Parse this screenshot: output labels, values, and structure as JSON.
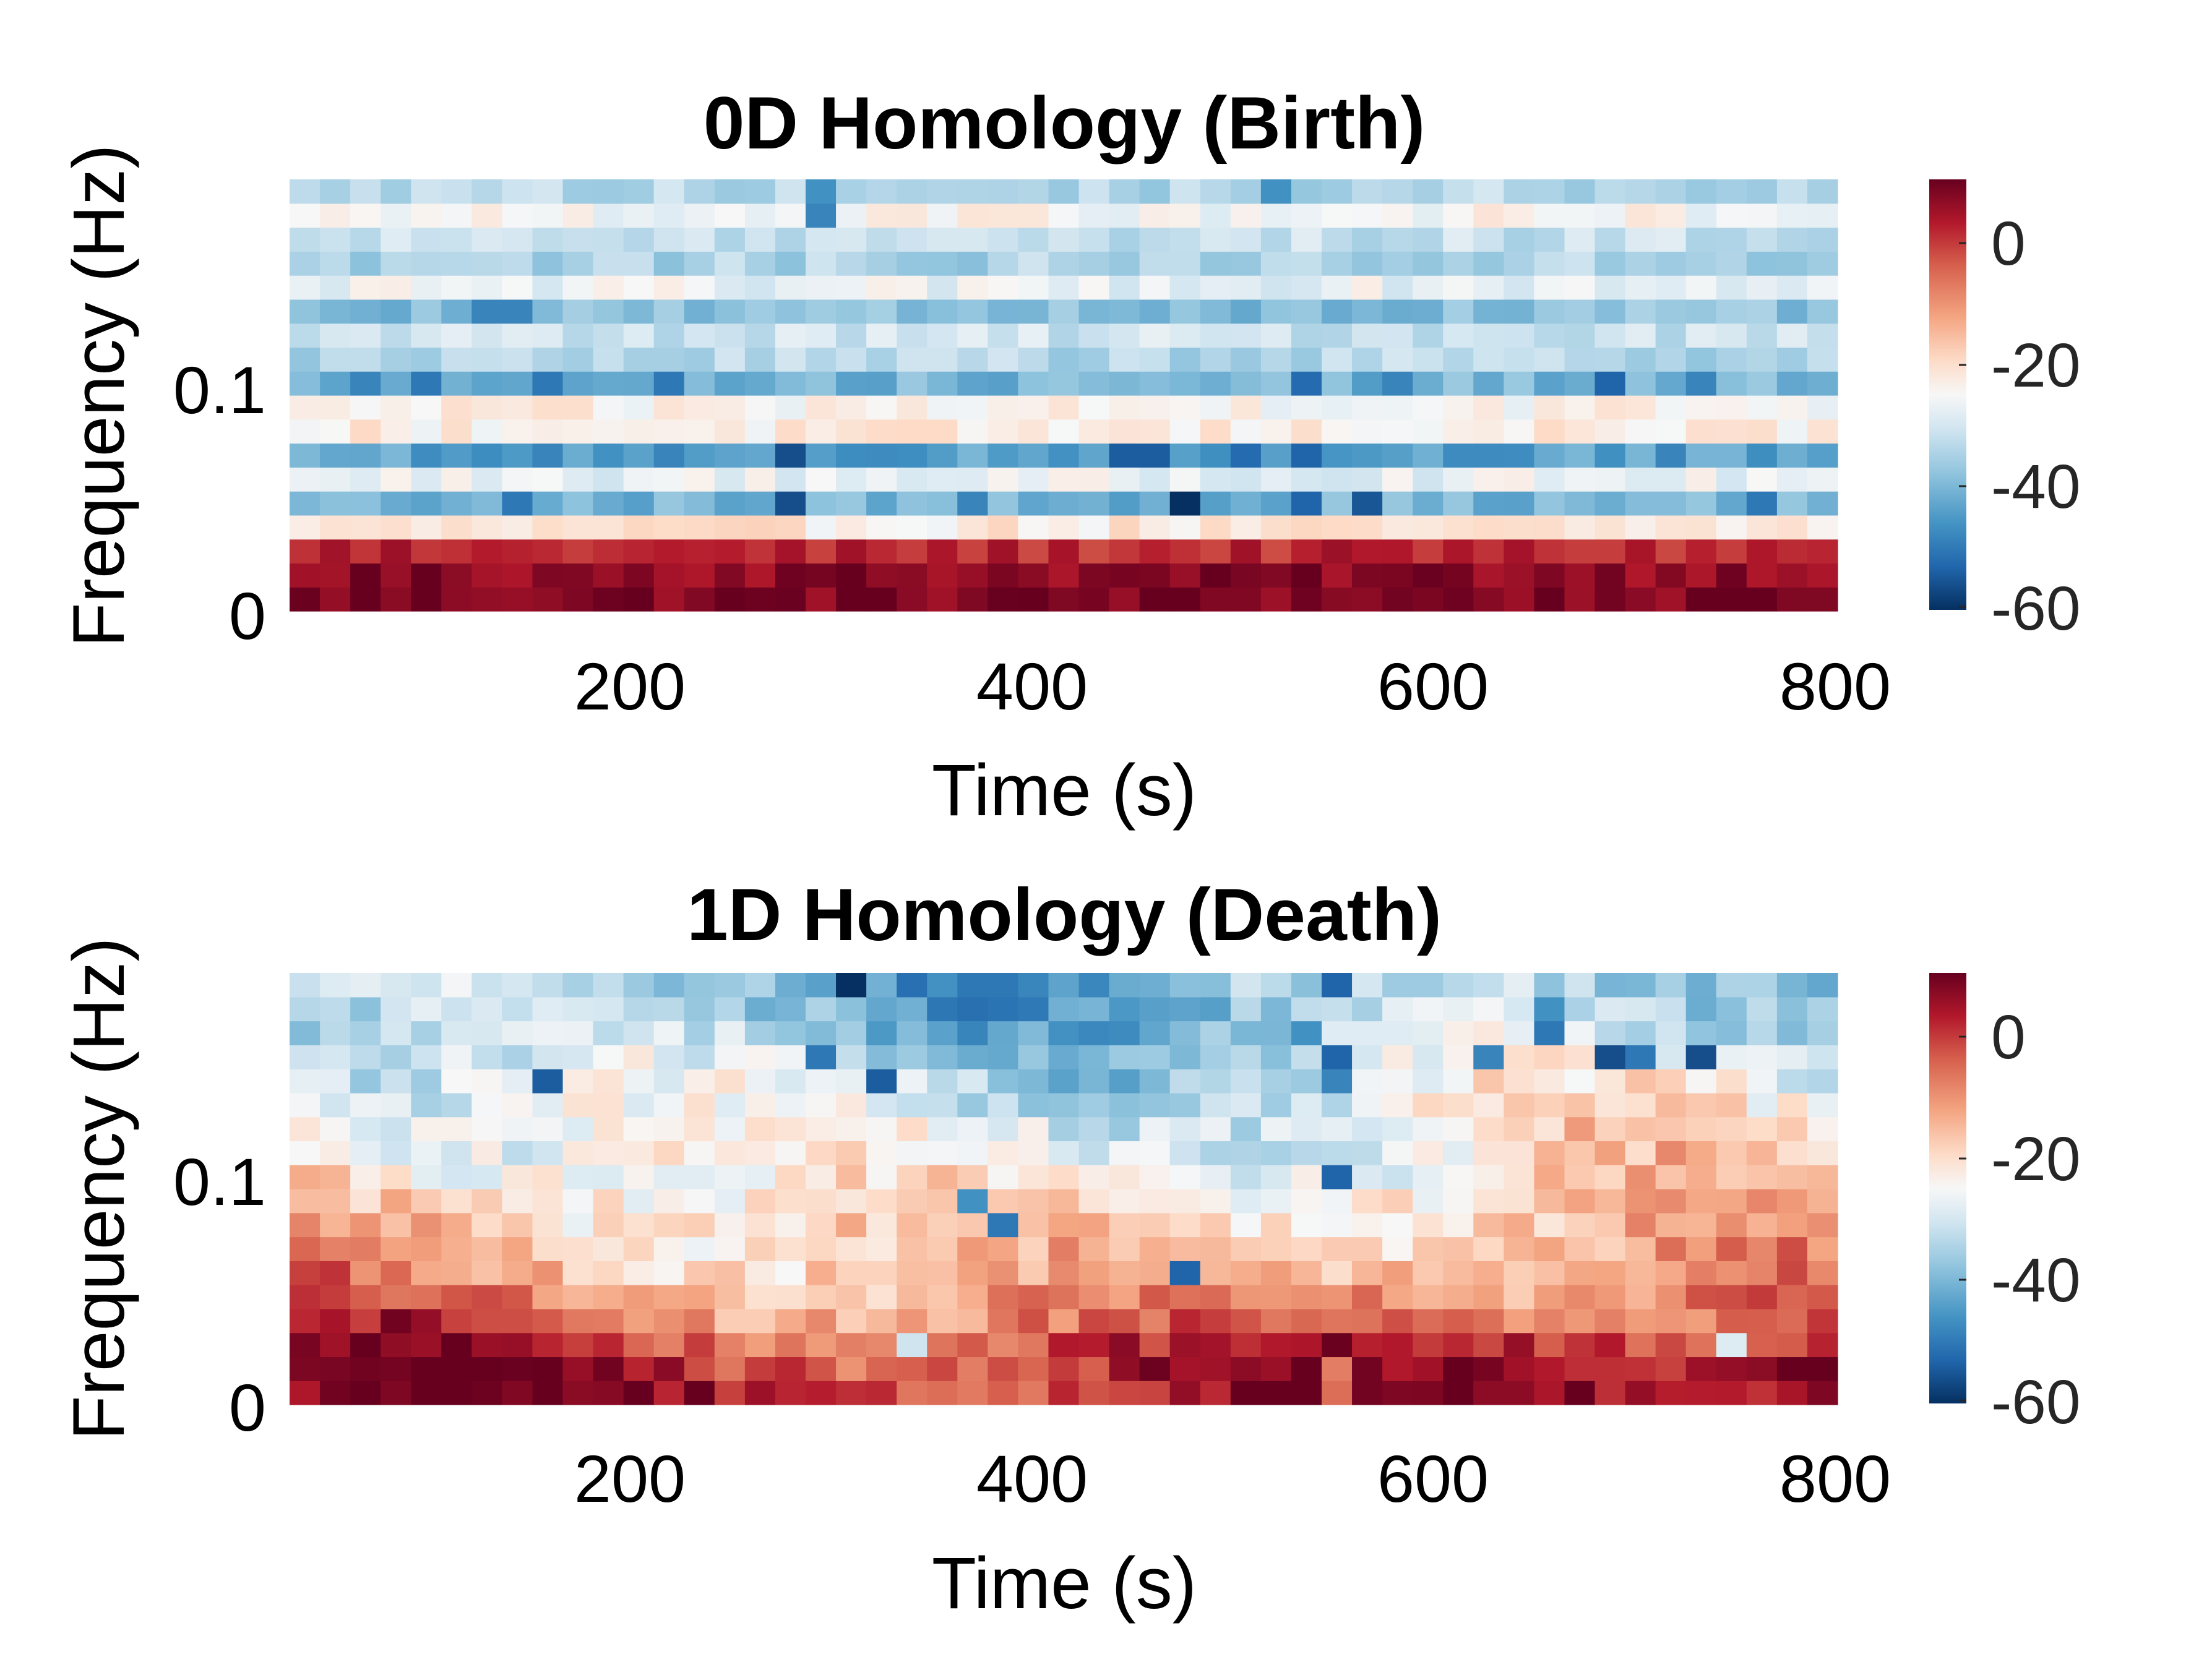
{
  "chart_data": [
    {
      "type": "heatmap",
      "title": "0D Homology (Birth)",
      "xlabel": "Time (s)",
      "ylabel": "Frequency (Hz)",
      "xlim": [
        35,
        800
      ],
      "ylim": [
        0,
        0.19
      ],
      "xticks": [
        200,
        400,
        600,
        800
      ],
      "xtick_labels": [
        "200",
        "400",
        "600",
        "800"
      ],
      "yticks": [
        0,
        0.1
      ],
      "ytick_labels": [
        "0",
        "0.1"
      ],
      "colorbar": {
        "range": [
          -62,
          10
        ],
        "ticks": [
          0,
          -20,
          -40,
          -60
        ],
        "tick_labels": [
          "0",
          "-20",
          "-40",
          "-60"
        ],
        "colormap": "RdBu_r"
      },
      "grid": {
        "columns": 51,
        "rows": 18,
        "row_mean_values": [
          8,
          7,
          1,
          -23,
          -42,
          -28,
          -45,
          -24,
          -25,
          -42,
          -35,
          -32,
          -40,
          -28,
          -36,
          -33,
          -26,
          -35
        ],
        "variability": 4,
        "cell_overrides": [
          {
            "row": 4,
            "col": 16,
            "value": -58
          },
          {
            "row": 4,
            "col": 29,
            "value": -62
          },
          {
            "row": 4,
            "col": 33,
            "value": -55
          },
          {
            "row": 4,
            "col": 35,
            "value": -57
          },
          {
            "row": 4,
            "col": 48,
            "value": -52
          },
          {
            "row": 4,
            "col": 7,
            "value": -52
          },
          {
            "row": 4,
            "col": 22,
            "value": -50
          },
          {
            "row": 6,
            "col": 16,
            "value": -58
          },
          {
            "row": 6,
            "col": 27,
            "value": -56
          },
          {
            "row": 6,
            "col": 28,
            "value": -56
          },
          {
            "row": 6,
            "col": 31,
            "value": -54
          },
          {
            "row": 6,
            "col": 33,
            "value": -55
          },
          {
            "row": 6,
            "col": 8,
            "value": -50
          },
          {
            "row": 6,
            "col": 12,
            "value": -50
          },
          {
            "row": 6,
            "col": 45,
            "value": -50
          },
          {
            "row": 9,
            "col": 2,
            "value": -50
          },
          {
            "row": 9,
            "col": 4,
            "value": -52
          },
          {
            "row": 9,
            "col": 8,
            "value": -52
          },
          {
            "row": 9,
            "col": 12,
            "value": -52
          },
          {
            "row": 9,
            "col": 33,
            "value": -54
          },
          {
            "row": 9,
            "col": 36,
            "value": -50
          },
          {
            "row": 9,
            "col": 43,
            "value": -55
          },
          {
            "row": 9,
            "col": 46,
            "value": -50
          },
          {
            "row": 12,
            "col": 6,
            "value": -50
          },
          {
            "row": 12,
            "col": 7,
            "value": -50
          },
          {
            "row": 16,
            "col": 17,
            "value": -50
          },
          {
            "row": 17,
            "col": 17,
            "value": -48
          },
          {
            "row": 17,
            "col": 32,
            "value": -48
          }
        ]
      }
    },
    {
      "type": "heatmap",
      "title": "1D Homology (Death)",
      "xlabel": "Time (s)",
      "ylabel": "Frequency (Hz)",
      "xlim": [
        35,
        800
      ],
      "ylim": [
        0,
        0.19
      ],
      "xticks": [
        200,
        400,
        600,
        800
      ],
      "xtick_labels": [
        "200",
        "400",
        "600",
        "800"
      ],
      "yticks": [
        0,
        0.1
      ],
      "ytick_labels": [
        "0",
        "0.1"
      ],
      "colorbar": {
        "range": [
          -62,
          10
        ],
        "ticks": [
          0,
          -20,
          -40,
          -60
        ],
        "tick_labels": [
          "0",
          "-20",
          "-40",
          "-60"
        ],
        "colormap": "RdBu_r"
      },
      "grid": {
        "columns": 51,
        "rows": 18,
        "row_mean_values": [
          5,
          3,
          0,
          -6,
          -10,
          -14,
          -16,
          -18,
          -20,
          -23,
          -25,
          -26,
          -29,
          -31,
          -34,
          -37,
          -38,
          -39
        ],
        "variability": 6,
        "cell_overrides": [
          {
            "row": 17,
            "col": 18,
            "value": -62
          },
          {
            "row": 17,
            "col": 34,
            "value": -55
          },
          {
            "row": 17,
            "col": 22,
            "value": -52
          },
          {
            "row": 17,
            "col": 23,
            "value": -52
          },
          {
            "row": 16,
            "col": 41,
            "value": -48
          },
          {
            "row": 15,
            "col": 41,
            "value": -52
          },
          {
            "row": 15,
            "col": 33,
            "value": -48
          },
          {
            "row": 14,
            "col": 34,
            "value": -55
          },
          {
            "row": 14,
            "col": 43,
            "value": -58
          },
          {
            "row": 14,
            "col": 44,
            "value": -52
          },
          {
            "row": 14,
            "col": 46,
            "value": -58
          },
          {
            "row": 14,
            "col": 17,
            "value": -52
          },
          {
            "row": 14,
            "col": 39,
            "value": -50
          },
          {
            "row": 13,
            "col": 8,
            "value": -56
          },
          {
            "row": 13,
            "col": 19,
            "value": -56
          },
          {
            "row": 13,
            "col": 34,
            "value": -50
          },
          {
            "row": 9,
            "col": 34,
            "value": -55
          },
          {
            "row": 8,
            "col": 22,
            "value": -48
          },
          {
            "row": 7,
            "col": 23,
            "value": -52
          },
          {
            "row": 5,
            "col": 29,
            "value": -55
          },
          {
            "row": 2,
            "col": 20,
            "value": -32
          },
          {
            "row": 2,
            "col": 47,
            "value": -30
          },
          {
            "row": 1,
            "col": 0,
            "value": 8
          },
          {
            "row": 1,
            "col": 10,
            "value": 9
          },
          {
            "row": 1,
            "col": 49,
            "value": 10
          },
          {
            "row": 1,
            "col": 50,
            "value": 10
          },
          {
            "row": 1,
            "col": 34,
            "value": -8
          },
          {
            "row": 0,
            "col": 34,
            "value": -6
          },
          {
            "row": 0,
            "col": 1,
            "value": 9
          }
        ]
      }
    }
  ]
}
